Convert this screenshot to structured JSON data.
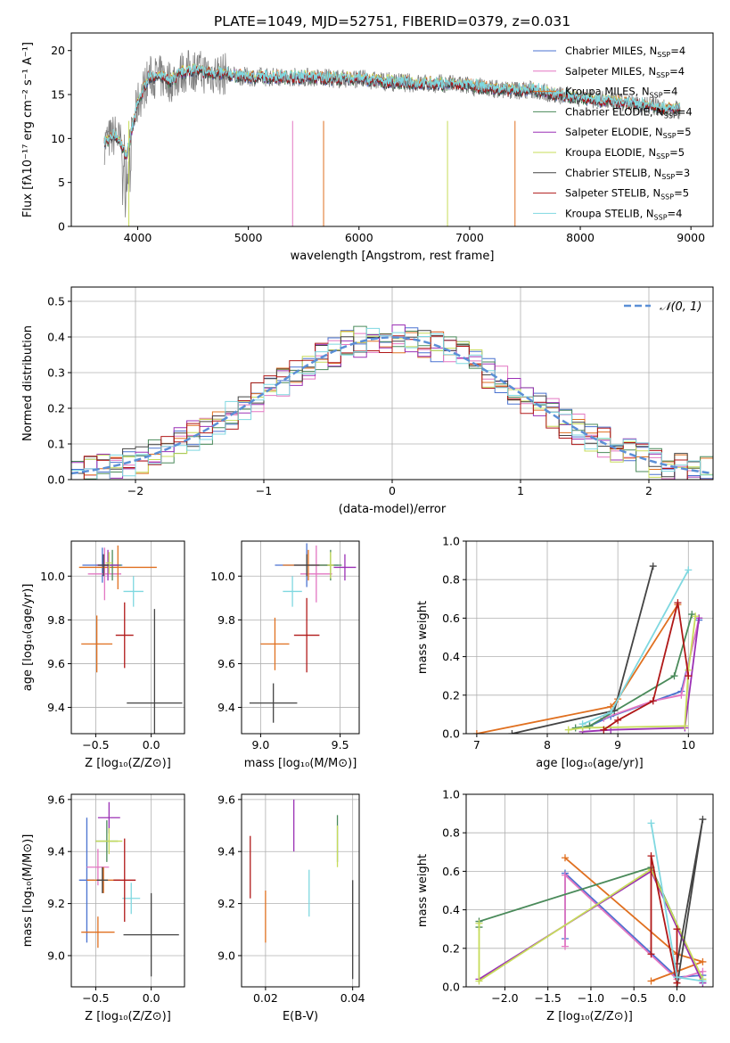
{
  "figure_title": "PLATE=1049, MJD=52751, FIBERID=0379, z=0.031",
  "models": [
    {
      "label": "Chabrier MILES, N",
      "sub": "SSP",
      "suffix": "=4",
      "color": "#4a72d0"
    },
    {
      "label": "Salpeter MILES, N",
      "sub": "SSP",
      "suffix": "=4",
      "color": "#e377c2"
    },
    {
      "label": "Kroupa MILES, N",
      "sub": "SSP",
      "suffix": "=4",
      "color": "#e07020"
    },
    {
      "label": "Chabrier ELODIE, N",
      "sub": "SSP",
      "suffix": "=4",
      "color": "#4a8a5a"
    },
    {
      "label": "Salpeter ELODIE, N",
      "sub": "SSP",
      "suffix": "=5",
      "color": "#9b30b5"
    },
    {
      "label": "Kroupa ELODIE, N",
      "sub": "SSP",
      "suffix": "=5",
      "color": "#c7dc5a"
    },
    {
      "label": "Chabrier STELIB, N",
      "sub": "SSP",
      "suffix": "=3",
      "color": "#444444"
    },
    {
      "label": "Salpeter STELIB, N",
      "sub": "SSP",
      "suffix": "=5",
      "color": "#b01818"
    },
    {
      "label": "Kroupa STELIB, N",
      "sub": "SSP",
      "suffix": "=4",
      "color": "#7fd8e0"
    }
  ],
  "chart_data": [
    {
      "id": "spectrum",
      "type": "line",
      "xlabel": "wavelength [Angstrom, rest frame]",
      "ylabel": "Flux [fλ10⁻¹⁷ erg cm⁻² s⁻¹ A⁻¹]",
      "xlim": [
        3400,
        9200
      ],
      "ylim": [
        0,
        22
      ],
      "xticks": [
        4000,
        5000,
        6000,
        7000,
        8000,
        9000
      ],
      "yticks": [
        0,
        5,
        10,
        15,
        20
      ],
      "grid": false,
      "legend": "top-right",
      "data_envelope": {
        "x": [
          3700,
          3800,
          3900,
          4000,
          4100,
          4200,
          4300,
          4400,
          4500,
          4600,
          4800,
          5000,
          5200,
          5500,
          5800,
          6000,
          6200,
          6500,
          6800,
          7000,
          7200,
          7400,
          7600,
          7800,
          8000,
          8200,
          8400,
          8600,
          8800,
          8900
        ],
        "y": [
          9.5,
          10.5,
          8,
          14,
          17,
          17,
          16.5,
          17.5,
          17.8,
          17.5,
          17.3,
          17,
          17,
          17,
          16.8,
          16.8,
          16.5,
          16.3,
          16.2,
          16,
          15.7,
          15.5,
          15.5,
          14.9,
          14.7,
          14.3,
          14,
          13.8,
          13.4,
          13.3
        ]
      },
      "notes": "observed spectrum (grey) with 9 model fits overlaid"
    },
    {
      "id": "residuals",
      "type": "step",
      "xlabel": "(data-model)/error",
      "ylabel": "Normed distribution",
      "xlim": [
        -2.5,
        2.5
      ],
      "ylim": [
        0,
        0.54
      ],
      "xticks": [
        -2,
        -1,
        0,
        1,
        2
      ],
      "xtick_labels": [
        "−2",
        "−1",
        "0",
        "1",
        "2"
      ],
      "yticks": [
        0,
        0.1,
        0.2,
        0.3,
        0.4,
        0.5
      ],
      "ytick_labels": [
        "0.0",
        "0.1",
        "0.2",
        "0.3",
        "0.4",
        "0.5"
      ],
      "grid": true,
      "legend": "top-right",
      "reference_label": "𝒩(0, 1)",
      "reference_color": "#5b8fd6",
      "bin_width": 0.1
    },
    {
      "id": "age_vs_Z",
      "type": "errorbar",
      "xlabel": "Z [log₁₀(Z/Z⊙)]",
      "ylabel": "age  [log₁₀(age/yr)]",
      "xlim": [
        -0.72,
        0.3
      ],
      "ylim": [
        9.28,
        10.16
      ],
      "xticks": [
        -0.5,
        0.0
      ],
      "xtick_labels": [
        "−0.5",
        "0.0"
      ],
      "yticks": [
        9.4,
        9.6,
        9.8,
        10.0
      ],
      "ytick_labels": [
        "9.4",
        "9.6",
        "9.8",
        "10.0"
      ],
      "grid": true,
      "points": [
        {
          "x": -0.44,
          "y": 10.05,
          "xerr": 0.18,
          "yerr": 0.08,
          "c": 0
        },
        {
          "x": -0.42,
          "y": 10.01,
          "xerr": 0.15,
          "yerr": 0.12,
          "c": 1
        },
        {
          "x": -0.3,
          "y": 10.04,
          "xerr": 0.35,
          "yerr": 0.1,
          "c": 2
        },
        {
          "x": -0.35,
          "y": 10.05,
          "xerr": 0.08,
          "yerr": 0.07,
          "c": 3
        },
        {
          "x": -0.39,
          "y": 10.05,
          "xerr": 0.1,
          "yerr": 0.07,
          "c": 4
        },
        {
          "x": -0.38,
          "y": 10.06,
          "xerr": 0.03,
          "yerr": 0.05,
          "c": 5
        },
        {
          "x": -0.43,
          "y": 10.05,
          "xerr": 0.05,
          "yerr": 0.05,
          "c": 6
        },
        {
          "x": -0.49,
          "y": 9.69,
          "xerr": 0.14,
          "yerr": 0.13,
          "c": 2
        },
        {
          "x": -0.16,
          "y": 9.93,
          "xerr": 0.09,
          "yerr": 0.07,
          "c": 8
        },
        {
          "x": -0.24,
          "y": 9.73,
          "xerr": 0.08,
          "yerr": 0.15,
          "c": 7
        },
        {
          "x": 0.03,
          "y": 9.42,
          "xerr": 0.25,
          "yerr": 0.43,
          "c": 6
        }
      ]
    },
    {
      "id": "age_vs_mass",
      "type": "errorbar",
      "xlabel": "mass [log₁₀(M/M⊙)]",
      "ylabel": "",
      "xlim": [
        8.88,
        9.62
      ],
      "ylim": [
        9.28,
        10.16
      ],
      "xticks": [
        9.0,
        9.5
      ],
      "xtick_labels": [
        "9.0",
        "9.5"
      ],
      "yticks": [
        9.4,
        9.6,
        9.8,
        10.0
      ],
      "ytick_labels": [
        "9.4",
        "9.6",
        "9.8",
        "10.0"
      ],
      "grid": true,
      "points": [
        {
          "x": 9.29,
          "y": 10.05,
          "xerr": 0.2,
          "yerr": 0.1,
          "c": 0
        },
        {
          "x": 9.35,
          "y": 10.01,
          "xerr": 0.1,
          "yerr": 0.13,
          "c": 1
        },
        {
          "x": 9.3,
          "y": 10.05,
          "xerr": 0.16,
          "yerr": 0.07,
          "c": 2
        },
        {
          "x": 9.44,
          "y": 10.05,
          "xerr": 0.07,
          "yerr": 0.07,
          "c": 3
        },
        {
          "x": 9.53,
          "y": 10.04,
          "xerr": 0.07,
          "yerr": 0.06,
          "c": 4
        },
        {
          "x": 9.44,
          "y": 10.05,
          "xerr": 0.02,
          "yerr": 0.06,
          "c": 5
        },
        {
          "x": 9.29,
          "y": 10.05,
          "xerr": 0.08,
          "yerr": 0.05,
          "c": 6
        },
        {
          "x": 9.2,
          "y": 9.93,
          "xerr": 0.06,
          "yerr": 0.07,
          "c": 8
        },
        {
          "x": 9.09,
          "y": 9.69,
          "xerr": 0.09,
          "yerr": 0.12,
          "c": 2
        },
        {
          "x": 9.29,
          "y": 9.73,
          "xerr": 0.08,
          "yerr": 0.17,
          "c": 7
        },
        {
          "x": 9.08,
          "y": 9.42,
          "xerr": 0.15,
          "yerr": 0.09,
          "c": 6
        }
      ]
    },
    {
      "id": "massweight_vs_age",
      "type": "line",
      "xlabel": "age  [log₁₀(age/yr)]",
      "ylabel": "mass weight",
      "xlim": [
        6.85,
        10.35
      ],
      "ylim": [
        0,
        1.0
      ],
      "xticks": [
        7,
        8,
        9,
        10
      ],
      "xtick_labels": [
        "7",
        "8",
        "9",
        "10"
      ],
      "yticks": [
        0,
        0.2,
        0.4,
        0.6,
        0.8,
        1.0
      ],
      "ytick_labels": [
        "0.0",
        "0.2",
        "0.4",
        "0.6",
        "0.8",
        "1.0"
      ],
      "grid": true,
      "series": [
        {
          "c": 0,
          "x": [
            8.6,
            8.9,
            9.9,
            10.15
          ],
          "y": [
            0.04,
            0.09,
            0.22,
            0.59
          ]
        },
        {
          "c": 1,
          "x": [
            8.8,
            9.5,
            9.9,
            10.15
          ],
          "y": [
            0.08,
            0.17,
            0.2,
            0.6
          ]
        },
        {
          "c": 2,
          "x": [
            7.0,
            8.9,
            9.0,
            9.85
          ],
          "y": [
            0.0,
            0.14,
            0.18,
            0.67
          ]
        },
        {
          "c": 3,
          "x": [
            8.4,
            8.6,
            9.8,
            10.05
          ],
          "y": [
            0.03,
            0.04,
            0.3,
            0.62
          ]
        },
        {
          "c": 4,
          "x": [
            8.5,
            8.9,
            9.95,
            10.15
          ],
          "y": [
            0.01,
            0.02,
            0.03,
            0.6
          ]
        },
        {
          "c": 5,
          "x": [
            8.3,
            8.5,
            9.95,
            10.0,
            10.1
          ],
          "y": [
            0.02,
            0.03,
            0.04,
            0.33,
            0.61
          ]
        },
        {
          "c": 6,
          "x": [
            7.5,
            8.95,
            9.5
          ],
          "y": [
            0.0,
            0.12,
            0.87
          ]
        },
        {
          "c": 7,
          "x": [
            8.8,
            9.0,
            9.5,
            9.85,
            10.0
          ],
          "y": [
            0.02,
            0.07,
            0.17,
            0.68,
            0.3
          ]
        },
        {
          "c": 8,
          "x": [
            8.5,
            8.9,
            10.0
          ],
          "y": [
            0.05,
            0.11,
            0.85
          ]
        }
      ]
    },
    {
      "id": "mass_vs_Z",
      "type": "errorbar",
      "xlabel": "Z [log₁₀(Z/Z⊙)]",
      "ylabel": "mass [log₁₀(M/M⊙)]",
      "xlim": [
        -0.72,
        0.3
      ],
      "ylim": [
        8.88,
        9.62
      ],
      "xticks": [
        -0.5,
        0.0
      ],
      "xtick_labels": [
        "−0.5",
        "0.0"
      ],
      "yticks": [
        9.0,
        9.2,
        9.4,
        9.6
      ],
      "ytick_labels": [
        "9.0",
        "9.2",
        "9.4",
        "9.6"
      ],
      "grid": true,
      "points": [
        {
          "x": -0.58,
          "y": 9.29,
          "xerr": 0.07,
          "yerr": 0.24,
          "c": 0
        },
        {
          "x": -0.48,
          "y": 9.34,
          "xerr": 0.1,
          "yerr": 0.07,
          "c": 1
        },
        {
          "x": -0.43,
          "y": 9.29,
          "xerr": 0.15,
          "yerr": 0.05,
          "c": 2
        },
        {
          "x": -0.4,
          "y": 9.44,
          "xerr": 0.1,
          "yerr": 0.08,
          "c": 3
        },
        {
          "x": -0.38,
          "y": 9.53,
          "xerr": 0.1,
          "yerr": 0.06,
          "c": 4
        },
        {
          "x": -0.38,
          "y": 9.44,
          "xerr": 0.12,
          "yerr": 0.05,
          "c": 5
        },
        {
          "x": -0.44,
          "y": 9.29,
          "xerr": 0.05,
          "yerr": 0.05,
          "c": 6
        },
        {
          "x": -0.18,
          "y": 9.22,
          "xerr": 0.08,
          "yerr": 0.06,
          "c": 8
        },
        {
          "x": -0.48,
          "y": 9.09,
          "xerr": 0.15,
          "yerr": 0.06,
          "c": 2
        },
        {
          "x": -0.24,
          "y": 9.29,
          "xerr": 0.1,
          "yerr": 0.16,
          "c": 7
        },
        {
          "x": 0.0,
          "y": 9.08,
          "xerr": 0.25,
          "yerr": 0.16,
          "c": 6
        }
      ]
    },
    {
      "id": "mass_vs_ebv",
      "type": "errorbar",
      "xlabel": "E(B-V)",
      "ylabel": "",
      "xlim": [
        0.0145,
        0.0415
      ],
      "ylim": [
        8.88,
        9.62
      ],
      "xticks": [
        0.02,
        0.04
      ],
      "xtick_labels": [
        "0.02",
        "0.04"
      ],
      "yticks": [
        9.0,
        9.2,
        9.4,
        9.6
      ],
      "ytick_labels": [
        "9.0",
        "9.2",
        "9.4",
        "9.6"
      ],
      "grid": true,
      "points": [
        {
          "x": 0.0165,
          "y": 9.34,
          "xerr": 0,
          "yerr": 0.12,
          "c": 7
        },
        {
          "x": 0.02,
          "y": 9.15,
          "xerr": 0,
          "yerr": 0.1,
          "c": 2
        },
        {
          "x": 0.0265,
          "y": 9.5,
          "xerr": 0,
          "yerr": 0.1,
          "c": 4
        },
        {
          "x": 0.03,
          "y": 9.24,
          "xerr": 0,
          "yerr": 0.09,
          "c": 8
        },
        {
          "x": 0.0365,
          "y": 9.45,
          "xerr": 0,
          "yerr": 0.09,
          "c": 3
        },
        {
          "x": 0.0365,
          "y": 9.42,
          "xerr": 0,
          "yerr": 0.08,
          "c": 5
        },
        {
          "x": 0.04,
          "y": 9.1,
          "xerr": 0,
          "yerr": 0.19,
          "c": 6
        }
      ]
    },
    {
      "id": "massweight_vs_Z",
      "type": "line",
      "xlabel": "Z [log₁₀(Z/Z⊙)]",
      "ylabel": "mass weight",
      "xlim": [
        -2.45,
        0.42
      ],
      "ylim": [
        0,
        1.0
      ],
      "xticks": [
        -2.0,
        -1.5,
        -1.0,
        -0.5,
        0.0
      ],
      "xtick_labels": [
        "−2.0",
        "−1.5",
        "−1.0",
        "−0.5",
        "0.0"
      ],
      "yticks": [
        0,
        0.2,
        0.4,
        0.6,
        0.8,
        1.0
      ],
      "ytick_labels": [
        "0.0",
        "0.2",
        "0.4",
        "0.6",
        "0.8",
        "1.0"
      ],
      "grid": true,
      "series": [
        {
          "c": 0,
          "x": [
            -1.3,
            -1.3,
            0.0,
            0.3
          ],
          "y": [
            0.25,
            0.59,
            0.05,
            0.06
          ]
        },
        {
          "c": 1,
          "x": [
            -1.3,
            -1.3,
            0.0,
            0.3
          ],
          "y": [
            0.21,
            0.58,
            0.04,
            0.08
          ]
        },
        {
          "c": 2,
          "x": [
            -1.3,
            0.0,
            0.3,
            -0.3
          ],
          "y": [
            0.67,
            0.17,
            0.13,
            0.03
          ]
        },
        {
          "c": 3,
          "x": [
            -2.3,
            -2.3,
            -0.3,
            0.3
          ],
          "y": [
            0.31,
            0.34,
            0.62,
            0.03
          ]
        },
        {
          "c": 4,
          "x": [
            -2.3,
            -0.3,
            0.3
          ],
          "y": [
            0.04,
            0.6,
            0.02
          ]
        },
        {
          "c": 5,
          "x": [
            -2.3,
            -2.3,
            -0.3,
            0.3
          ],
          "y": [
            0.33,
            0.03,
            0.61,
            0.04
          ]
        },
        {
          "c": 6,
          "x": [
            0.0,
            0.3,
            0.0
          ],
          "y": [
            0.12,
            0.87,
            0.0
          ]
        },
        {
          "c": 7,
          "x": [
            -0.3,
            -0.3,
            0.0,
            0.0
          ],
          "y": [
            0.17,
            0.68,
            0.02,
            0.3
          ]
        },
        {
          "c": 8,
          "x": [
            -0.3,
            0.0,
            0.3
          ],
          "y": [
            0.85,
            0.05,
            0.03
          ]
        }
      ]
    }
  ]
}
